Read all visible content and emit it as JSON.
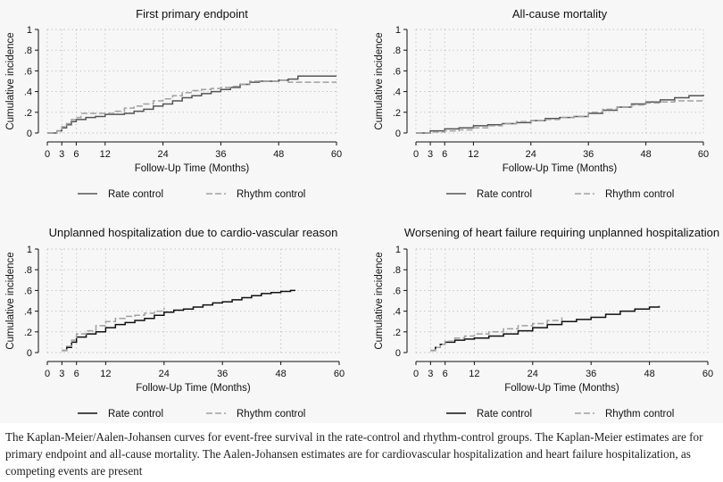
{
  "caption": "The Kaplan-Meier/Aalen-Johansen curves for event-free survival in the rate-control and rhythm-control groups. The Kaplan-Meier estimates are for primary endpoint and all-cause mortality. The Aalen-Johansen estimates are for cardiovascular hospitalization and heart failure hospitalization, as competing events are present",
  "colors": {
    "background": "#f7f7f7",
    "grid": "#b5b5b5",
    "rate_gray": "#555555",
    "rate_black": "#111111",
    "rhythm": "#a0a0a0"
  },
  "chart_data": [
    {
      "type": "line",
      "title": "First primary endpoint",
      "xlabel": "Follow-Up Time (Months)",
      "ylabel": "Cumulative incidence",
      "xticks": [
        0,
        3,
        6,
        12,
        24,
        36,
        48,
        60
      ],
      "xtick_labels": [
        "0",
        "3",
        "6",
        "12",
        "24",
        "36",
        "48",
        "60"
      ],
      "yticks": [
        0,
        0.2,
        0.4,
        0.6,
        0.8,
        1
      ],
      "ytick_labels": [
        "0",
        ".2",
        ".4",
        ".6",
        ".8",
        "1"
      ],
      "xlim": [
        0,
        60
      ],
      "ylim": [
        0,
        1
      ],
      "grid": true,
      "legend_position": "bottom",
      "series": [
        {
          "name": "Rate control",
          "style": "solid",
          "color": "#555555",
          "x": [
            0,
            2,
            3,
            4,
            5,
            6,
            8,
            10,
            12,
            14,
            16,
            18,
            20,
            22,
            24,
            26,
            28,
            30,
            32,
            34,
            36,
            38,
            40,
            42,
            44,
            46,
            48,
            50,
            52,
            54,
            56,
            58,
            60
          ],
          "y": [
            0,
            0.02,
            0.05,
            0.08,
            0.11,
            0.13,
            0.15,
            0.16,
            0.18,
            0.18,
            0.19,
            0.21,
            0.23,
            0.26,
            0.28,
            0.31,
            0.34,
            0.36,
            0.38,
            0.4,
            0.42,
            0.44,
            0.47,
            0.49,
            0.5,
            0.5,
            0.51,
            0.52,
            0.55,
            0.55,
            0.55,
            0.55,
            0.55
          ]
        },
        {
          "name": "Rhythm control",
          "style": "dashed",
          "color": "#a0a0a0",
          "x": [
            0,
            2,
            3,
            4,
            5,
            6,
            7,
            9,
            12,
            14,
            16,
            18,
            20,
            22,
            24,
            26,
            28,
            30,
            32,
            34,
            36,
            38,
            40,
            42,
            44,
            46,
            48,
            50,
            52,
            54,
            56,
            58,
            60
          ],
          "y": [
            0,
            0.02,
            0.06,
            0.09,
            0.13,
            0.15,
            0.19,
            0.19,
            0.19,
            0.21,
            0.24,
            0.26,
            0.28,
            0.31,
            0.33,
            0.36,
            0.39,
            0.41,
            0.42,
            0.43,
            0.44,
            0.45,
            0.47,
            0.5,
            0.5,
            0.5,
            0.51,
            0.49,
            0.49,
            0.49,
            0.49,
            0.49,
            0.49
          ]
        }
      ]
    },
    {
      "type": "line",
      "title": "All-cause mortality",
      "xlabel": "Follow-Up Time (Months)",
      "ylabel": "Cumulative incidence",
      "xticks": [
        0,
        3,
        6,
        12,
        24,
        36,
        48,
        60
      ],
      "xtick_labels": [
        "0",
        "3",
        "6",
        "12",
        "24",
        "36",
        "48",
        "60"
      ],
      "yticks": [
        0,
        0.2,
        0.4,
        0.6,
        0.8,
        1
      ],
      "ytick_labels": [
        "0",
        ".2",
        ".4",
        ".6",
        ".8",
        "1"
      ],
      "xlim": [
        0,
        60
      ],
      "ylim": [
        0,
        1
      ],
      "grid": true,
      "legend_position": "bottom",
      "series": [
        {
          "name": "Rate control",
          "style": "solid",
          "color": "#555555",
          "x": [
            0,
            3,
            6,
            9,
            12,
            15,
            18,
            21,
            24,
            27,
            30,
            33,
            36,
            39,
            42,
            45,
            48,
            51,
            54,
            57,
            60
          ],
          "y": [
            0,
            0.02,
            0.04,
            0.05,
            0.07,
            0.08,
            0.09,
            0.1,
            0.12,
            0.14,
            0.15,
            0.16,
            0.19,
            0.22,
            0.25,
            0.28,
            0.3,
            0.32,
            0.34,
            0.36,
            0.37
          ]
        },
        {
          "name": "Rhythm control",
          "style": "dashed",
          "color": "#a0a0a0",
          "x": [
            0,
            3,
            6,
            9,
            12,
            15,
            18,
            21,
            24,
            27,
            30,
            33,
            36,
            39,
            42,
            45,
            48,
            51,
            54,
            57,
            60
          ],
          "y": [
            0,
            0.01,
            0.02,
            0.03,
            0.05,
            0.07,
            0.09,
            0.11,
            0.12,
            0.13,
            0.15,
            0.16,
            0.2,
            0.23,
            0.25,
            0.27,
            0.29,
            0.3,
            0.31,
            0.31,
            0.31
          ]
        }
      ]
    },
    {
      "type": "line",
      "title": "Unplanned hospitalization due to cardio-vascular reason",
      "xlabel": "Follow-Up Time (Months)",
      "ylabel": "Cumulative incidence",
      "xticks": [
        0,
        3,
        6,
        12,
        24,
        36,
        48,
        60
      ],
      "xtick_labels": [
        "0",
        "3",
        "6",
        "12",
        "24",
        "36",
        "48",
        "60"
      ],
      "yticks": [
        0,
        0.2,
        0.4,
        0.6,
        0.8,
        1
      ],
      "ytick_labels": [
        "0",
        ".2",
        ".4",
        ".6",
        ".8",
        "1"
      ],
      "xlim": [
        0,
        60
      ],
      "ylim": [
        0,
        1
      ],
      "grid": true,
      "legend_position": "bottom",
      "series": [
        {
          "name": "Rate control",
          "style": "solid",
          "color": "#111111",
          "x": [
            3,
            4,
            5,
            6,
            8,
            10,
            12,
            14,
            16,
            18,
            20,
            22,
            24,
            26,
            28,
            30,
            32,
            34,
            36,
            38,
            40,
            42,
            44,
            46,
            48,
            50,
            51
          ],
          "y": [
            0.02,
            0.05,
            0.1,
            0.15,
            0.18,
            0.2,
            0.24,
            0.27,
            0.29,
            0.31,
            0.33,
            0.36,
            0.39,
            0.41,
            0.42,
            0.44,
            0.46,
            0.48,
            0.49,
            0.51,
            0.53,
            0.55,
            0.57,
            0.58,
            0.59,
            0.6,
            0.6
          ]
        },
        {
          "name": "Rhythm control",
          "style": "dashed",
          "color": "#a0a0a0",
          "x": [
            3,
            4,
            5,
            6,
            8,
            10,
            12,
            14,
            16,
            18,
            20,
            22,
            24
          ],
          "y": [
            0.02,
            0.06,
            0.12,
            0.18,
            0.21,
            0.26,
            0.3,
            0.33,
            0.35,
            0.36,
            0.38,
            0.4,
            0.43
          ]
        }
      ]
    },
    {
      "type": "line",
      "title": "Worsening of heart failure requiring unplanned hospitalization",
      "xlabel": "Follow-Up Time (Months)",
      "ylabel": "Cumulative incidence",
      "xticks": [
        0,
        3,
        6,
        12,
        24,
        36,
        48,
        60
      ],
      "xtick_labels": [
        "0",
        "3",
        "6",
        "12",
        "24",
        "36",
        "48",
        "60"
      ],
      "yticks": [
        0,
        0.2,
        0.4,
        0.6,
        0.8,
        1
      ],
      "ytick_labels": [
        "0",
        ".2",
        ".4",
        ".6",
        ".8",
        "1"
      ],
      "xlim": [
        0,
        60
      ],
      "ylim": [
        0,
        1
      ],
      "grid": true,
      "legend_position": "bottom",
      "series": [
        {
          "name": "Rate control",
          "style": "solid",
          "color": "#111111",
          "x": [
            3,
            4,
            5,
            6,
            8,
            10,
            12,
            15,
            18,
            21,
            24,
            27,
            30,
            33,
            36,
            39,
            42,
            45,
            48,
            50
          ],
          "y": [
            0.02,
            0.05,
            0.08,
            0.1,
            0.12,
            0.13,
            0.14,
            0.16,
            0.18,
            0.21,
            0.24,
            0.27,
            0.3,
            0.32,
            0.34,
            0.37,
            0.4,
            0.42,
            0.44,
            0.45
          ]
        },
        {
          "name": "Rhythm control",
          "style": "dashed",
          "color": "#a0a0a0",
          "x": [
            3,
            4,
            5,
            6,
            8,
            10,
            12,
            15,
            18,
            21,
            24,
            27,
            30
          ],
          "y": [
            0.02,
            0.05,
            0.08,
            0.11,
            0.14,
            0.16,
            0.18,
            0.2,
            0.23,
            0.26,
            0.28,
            0.31,
            0.34
          ]
        }
      ]
    }
  ]
}
